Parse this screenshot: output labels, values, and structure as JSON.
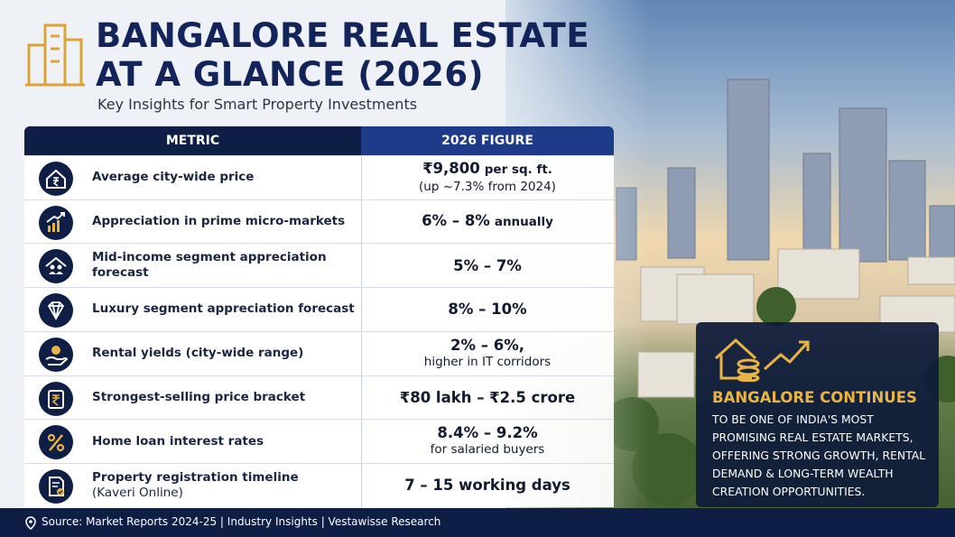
{
  "header": {
    "title_lines": [
      "BANGALORE REAL ESTATE",
      "AT A GLANCE (2026)"
    ],
    "subtitle": "Key Insights for Smart Property Investments"
  },
  "table": {
    "columns": [
      "METRIC",
      "2026 FIGURE"
    ],
    "rows": [
      {
        "metric": "Average city-wide price",
        "figure": {
          "main": "₹9,800",
          "suffix": "per sq. ft.",
          "sub": "(up ~7.3% from 2024)"
        }
      },
      {
        "metric": "Appreciation in prime micro-markets",
        "figure": {
          "main": "6% – 8%",
          "suffix": "annually"
        }
      },
      {
        "metric": "Mid-income segment appreciation forecast",
        "figure": {
          "main": "5% – 7%"
        }
      },
      {
        "metric": "Luxury segment appreciation forecast",
        "figure": {
          "main": "8% – 10%"
        }
      },
      {
        "metric": "Rental yields (city-wide range)",
        "figure": {
          "main": "2% – 6%,",
          "sub": "higher in IT corridors"
        }
      },
      {
        "metric": "Strongest-selling price bracket",
        "figure": {
          "main": "₹80 lakh – ₹2.5 crore"
        }
      },
      {
        "metric": "Home loan interest rates",
        "figure": {
          "main": "8.4% – 9.2%",
          "sub": "for salaried buyers"
        }
      },
      {
        "metric": "Property registration timeline",
        "metric_note": "(Kaveri Online)",
        "figure": {
          "main": "7 – 15 working days"
        }
      }
    ]
  },
  "callout": {
    "title": "BANGALORE CONTINUES",
    "body": "TO BE ONE OF INDIA'S MOST PROMISING REAL ESTATE MARKETS, OFFERING STRONG GROWTH, RENTAL DEMAND & LONG-TERM WEALTH CREATION OPPORTUNITIES."
  },
  "footer": {
    "source": "Source: Market Reports 2024-25 | Industry Insights | Vestawisse Research"
  }
}
